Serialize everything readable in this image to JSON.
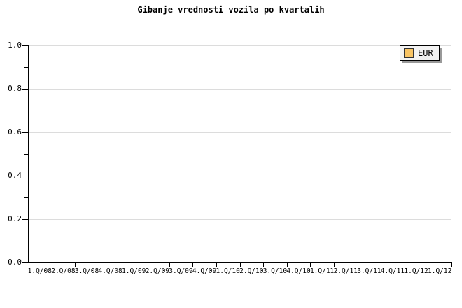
{
  "title": "Gibanje vrednosti vozila po kvartalih",
  "legend": {
    "label": "EUR"
  },
  "colors": {
    "background": "#FFFFFF",
    "grid": "#DCDCDC",
    "axis": "#000000",
    "text": "#000000",
    "legend_bg": "#F3F3F3",
    "legend_border": "#000000",
    "legend_shadow": "#999999",
    "swatch_fill": "#F8C464",
    "swatch_border": "#333333"
  },
  "y_axis": {
    "tick_labels": [
      "1.0",
      "0.8",
      "0.6",
      "0.4",
      "0.2",
      "0.0"
    ],
    "minor_tick_step": 0.1
  },
  "x_axis": {
    "tick_labels": [
      "1.Q/08",
      "2.Q/08",
      "3.Q/08",
      "4.Q/08",
      "1.Q/09",
      "2.Q/09",
      "3.Q/09",
      "4.Q/09",
      "1.Q/10",
      "2.Q/10",
      "3.Q/10",
      "4.Q/10",
      "1.Q/11",
      "2.Q/11",
      "3.Q/11",
      "4.Q/11",
      "1.Q/12",
      "1.Q/12"
    ]
  },
  "chart_data": {
    "type": "line",
    "title": "Gibanje vrednosti vozila po kvartalih",
    "categories": [
      "1.Q/08",
      "2.Q/08",
      "3.Q/08",
      "4.Q/08",
      "1.Q/09",
      "2.Q/09",
      "3.Q/09",
      "4.Q/09",
      "1.Q/10",
      "2.Q/10",
      "3.Q/10",
      "4.Q/10",
      "1.Q/11",
      "2.Q/11",
      "3.Q/11",
      "4.Q/11",
      "1.Q/12",
      "1.Q/12"
    ],
    "series": [
      {
        "name": "EUR",
        "values": []
      }
    ],
    "xlabel": "",
    "ylabel": "",
    "ylim": [
      0.0,
      1.0
    ],
    "y_ticks": [
      0.0,
      0.2,
      0.4,
      0.6,
      0.8,
      1.0
    ],
    "grid": true,
    "gridlines": "horizontal-major-only",
    "legend_position": "top-right",
    "plot_area_empty": true
  }
}
